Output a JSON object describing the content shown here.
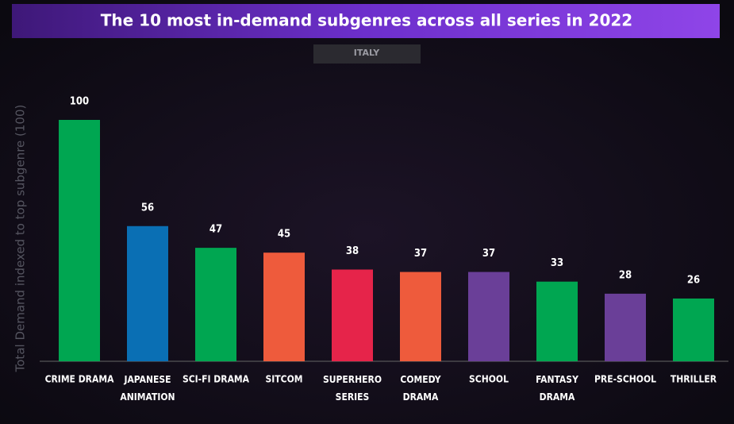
{
  "chart_data": {
    "type": "bar",
    "title": "The 10 most in-demand subgenres across all series in 2022",
    "subtitle": "ITALY",
    "y_label": "Total Demand indexed to top subgenre (100)",
    "categories": [
      "CRIME DRAMA",
      "JAPANESE\nANIMATION",
      "SCI-FI DRAMA",
      "SITCOM",
      "SUPERHERO\nSERIES",
      "COMEDY\nDRAMA",
      "SCHOOL",
      "FANTASY\nDRAMA",
      "PRE-SCHOOL",
      "THRILLER"
    ],
    "values": [
      100,
      56,
      47,
      45,
      38,
      37,
      37,
      33,
      28,
      26
    ],
    "colors": [
      "#00a651",
      "#0a6fb4",
      "#00a651",
      "#ee5b3c",
      "#e6244a",
      "#ee5b3c",
      "#6a3f98",
      "#00a651",
      "#6a3f98",
      "#00a651"
    ],
    "ylim": [
      0,
      100
    ]
  }
}
